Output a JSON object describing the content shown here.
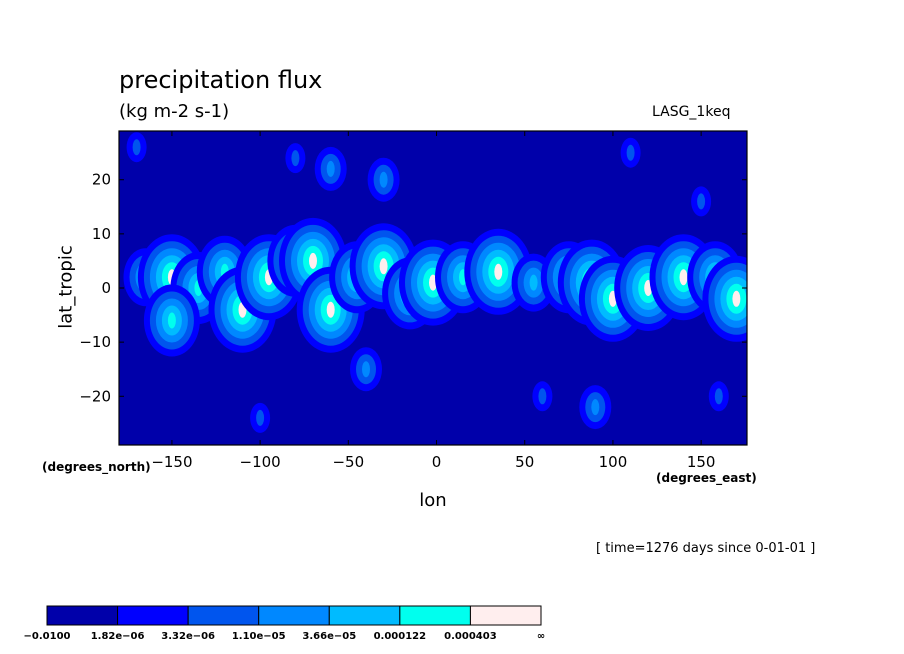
{
  "chart": {
    "title": "precipitation flux",
    "units": "(kg m-2 s-1)",
    "dataset": "LASG_1keq",
    "xlabel": "lon",
    "ylabel": "lat_tropic",
    "x_unit_note": "(degrees_east)",
    "y_unit_note": "(degrees_north)",
    "time_note": "[ time=1276 days since 0-01-01 ]"
  },
  "chart_data": {
    "type": "heatmap",
    "title": "precipitation flux",
    "subtitle": "(kg m-2 s-1)",
    "xlabel": "lon",
    "ylabel": "lat_tropic",
    "xlim": [
      -180,
      176
    ],
    "ylim": [
      -29,
      29
    ],
    "x_ticks": [
      -150,
      -100,
      -50,
      0,
      50,
      100,
      150
    ],
    "x_tick_labels": [
      "−150",
      "−100",
      "−50",
      "0",
      "50",
      "100",
      "150"
    ],
    "y_ticks": [
      20,
      10,
      0,
      -10,
      -20
    ],
    "y_tick_labels": [
      "20",
      "10",
      "0",
      "−10",
      "−20"
    ],
    "colorbar": {
      "levels": [
        "−0.0100",
        "1.82e−06",
        "3.32e−06",
        "1.10e−05",
        "3.66e−05",
        "0.000122",
        "0.000403",
        "∞"
      ],
      "colors": [
        "#0000aa",
        "#0000ff",
        "#0055ee",
        "#0088ff",
        "#00bbff",
        "#00ffee",
        "#ffeeee"
      ]
    },
    "blobs": [
      {
        "lon": -165,
        "lat": 2,
        "level": 4
      },
      {
        "lon": -150,
        "lat": 2,
        "level": 6
      },
      {
        "lon": -135,
        "lat": 0,
        "level": 5
      },
      {
        "lon": -120,
        "lat": 3,
        "level": 5
      },
      {
        "lon": -110,
        "lat": -4,
        "level": 6
      },
      {
        "lon": -95,
        "lat": 2,
        "level": 6
      },
      {
        "lon": -80,
        "lat": 5,
        "level": 5
      },
      {
        "lon": -70,
        "lat": 5,
        "level": 6
      },
      {
        "lon": -60,
        "lat": -4,
        "level": 6
      },
      {
        "lon": -45,
        "lat": 2,
        "level": 5
      },
      {
        "lon": -30,
        "lat": 4,
        "level": 6
      },
      {
        "lon": -15,
        "lat": -1,
        "level": 5
      },
      {
        "lon": -2,
        "lat": 1,
        "level": 6
      },
      {
        "lon": 15,
        "lat": 2,
        "level": 5
      },
      {
        "lon": 35,
        "lat": 3,
        "level": 6
      },
      {
        "lon": 55,
        "lat": 1,
        "level": 4
      },
      {
        "lon": 75,
        "lat": 2,
        "level": 5
      },
      {
        "lon": 88,
        "lat": 1,
        "level": 6
      },
      {
        "lon": 100,
        "lat": -2,
        "level": 6
      },
      {
        "lon": 120,
        "lat": 0,
        "level": 6
      },
      {
        "lon": 140,
        "lat": 2,
        "level": 6
      },
      {
        "lon": 158,
        "lat": 2,
        "level": 5
      },
      {
        "lon": 170,
        "lat": -2,
        "level": 6
      },
      {
        "lon": -150,
        "lat": -6,
        "level": 5
      },
      {
        "lon": -60,
        "lat": 22,
        "level": 3
      },
      {
        "lon": -80,
        "lat": 24,
        "level": 2
      },
      {
        "lon": -30,
        "lat": 20,
        "level": 3
      },
      {
        "lon": 110,
        "lat": 25,
        "level": 2
      },
      {
        "lon": 150,
        "lat": 16,
        "level": 2
      },
      {
        "lon": -170,
        "lat": 26,
        "level": 2
      },
      {
        "lon": 160,
        "lat": -20,
        "level": 2
      },
      {
        "lon": 90,
        "lat": -22,
        "level": 3
      },
      {
        "lon": -40,
        "lat": -15,
        "level": 3
      },
      {
        "lon": -100,
        "lat": -24,
        "level": 2
      },
      {
        "lon": 60,
        "lat": -20,
        "level": 2
      }
    ]
  }
}
